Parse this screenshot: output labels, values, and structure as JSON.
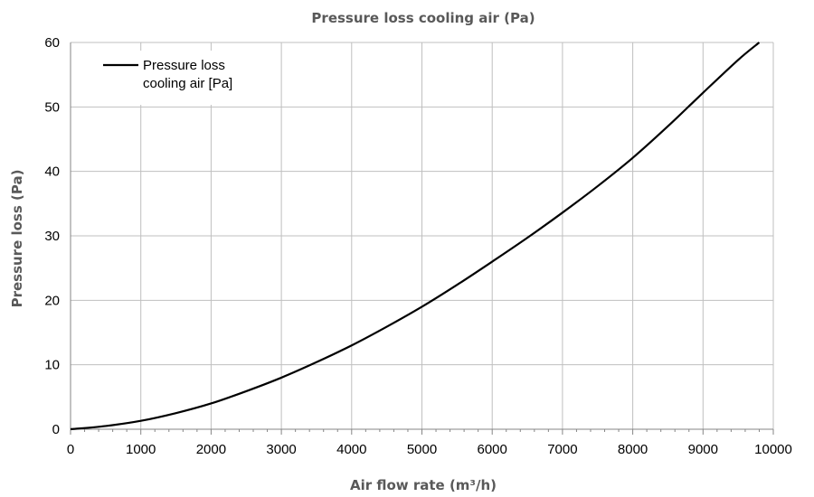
{
  "chart_data": {
    "type": "line",
    "title": "Pressure loss cooling air (Pa)",
    "xlabel": "Air flow rate (m³/h)",
    "ylabel": "Pressure loss (Pa)",
    "xlim": [
      0,
      10000
    ],
    "ylim": [
      0,
      60
    ],
    "x_ticks": [
      "0",
      "1000",
      "2000",
      "3000",
      "4000",
      "5000",
      "6000",
      "7000",
      "8000",
      "9000",
      "10000"
    ],
    "y_ticks": [
      "0",
      "10",
      "20",
      "30",
      "40",
      "50",
      "60"
    ],
    "grid": true,
    "legend_position": "top-left",
    "series": [
      {
        "name": "Pressure loss cooling air [Pa]",
        "color": "#000000",
        "x": [
          0,
          500,
          1000,
          1500,
          2000,
          2500,
          3000,
          3500,
          4000,
          4500,
          5000,
          5500,
          6000,
          6500,
          7000,
          7500,
          8000,
          8500,
          9000,
          9500,
          9800
        ],
        "y": [
          0,
          0.5,
          1.3,
          2.5,
          4.0,
          5.9,
          8.0,
          10.4,
          13.0,
          15.9,
          19.0,
          22.4,
          26.0,
          29.7,
          33.6,
          37.7,
          42.1,
          47.0,
          52.2,
          57.3,
          60.0
        ]
      }
    ]
  }
}
